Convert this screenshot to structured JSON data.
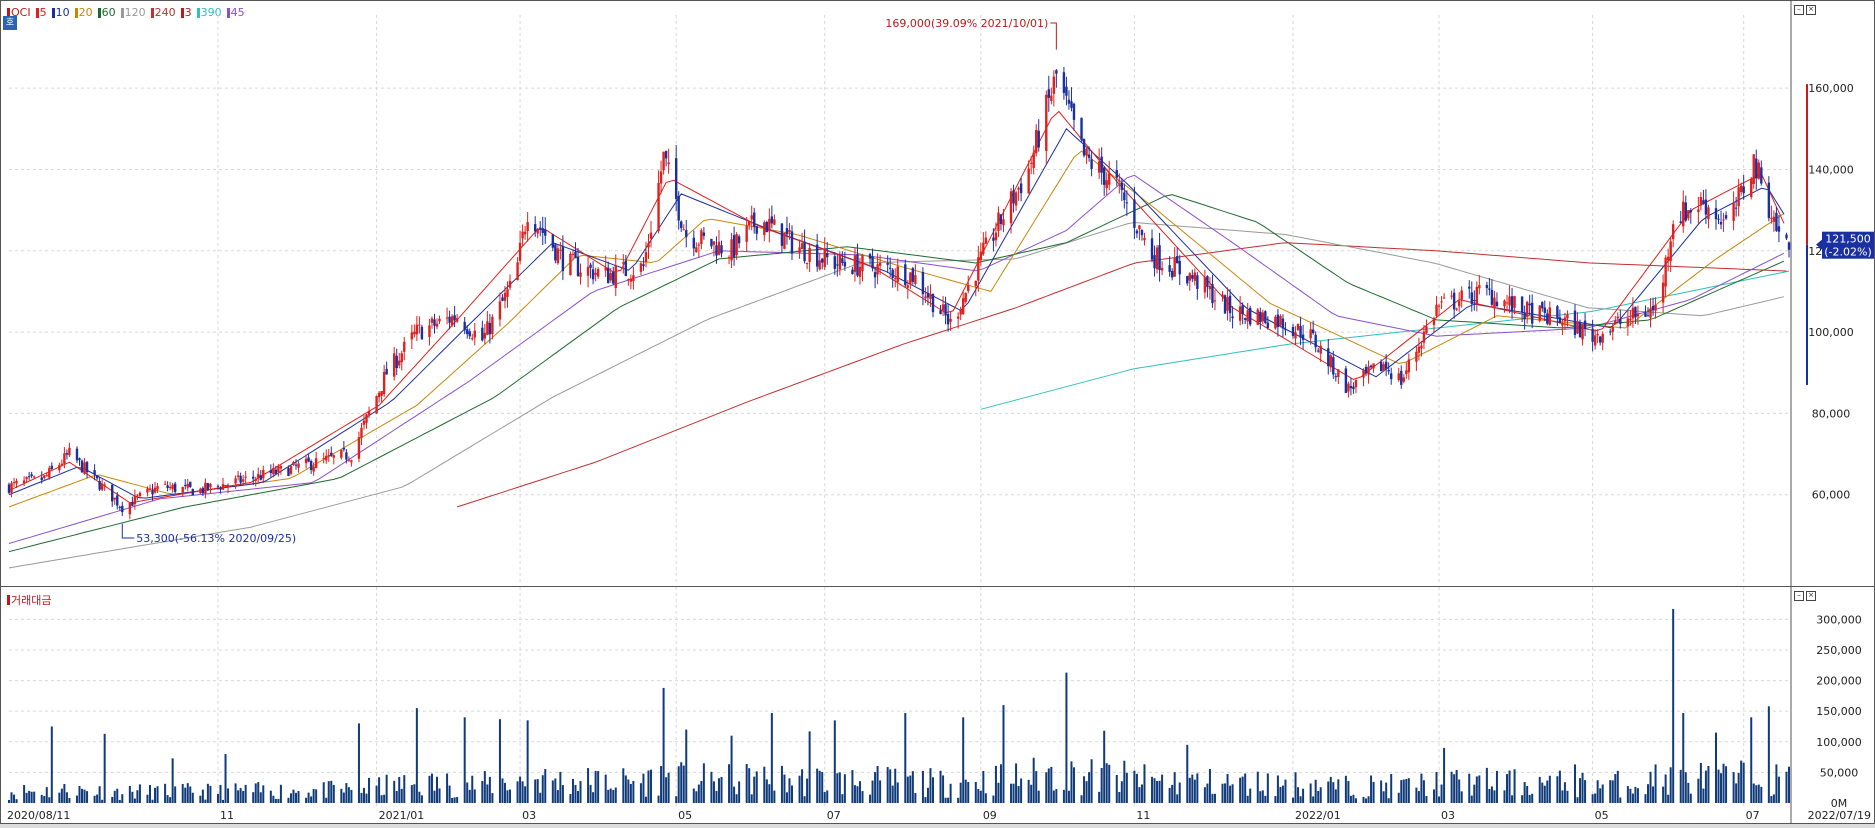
{
  "chart_data": [
    {
      "type": "candlestick",
      "symbol": "OCI",
      "legend": [
        {
          "label": "OCI",
          "color": "#c01818"
        },
        {
          "label": "5",
          "color": "#e0201c"
        },
        {
          "label": "10",
          "color": "#1a2fa0"
        },
        {
          "label": "20",
          "color": "#c8860a"
        },
        {
          "label": "60",
          "color": "#1e6b2e"
        },
        {
          "label": "120",
          "color": "#999999"
        },
        {
          "label": "240",
          "color": "#c03030"
        },
        {
          "label": "3",
          "color": "#c01818"
        },
        {
          "label": "390",
          "color": "#30c0c0"
        },
        {
          "label": "45",
          "color": "#8a4fd0"
        }
      ],
      "ylim": [
        40000,
        178000
      ],
      "yticks": [
        60000,
        80000,
        100000,
        120000,
        140000,
        160000
      ],
      "ytick_labels": [
        "60,000",
        "80,000",
        "100,000",
        "120,000",
        "140,000",
        "160,000"
      ],
      "x_range": [
        "2020-08-11",
        "2022-07-19"
      ],
      "x_ticks": [
        {
          "date": "2020-08-11",
          "label": "2020/08/11"
        },
        {
          "date": "2020-11-02",
          "label": "11"
        },
        {
          "date": "2021-01-04",
          "label": "2021/01"
        },
        {
          "date": "2021-03-02",
          "label": "03"
        },
        {
          "date": "2021-05-03",
          "label": "05"
        },
        {
          "date": "2021-07-01",
          "label": "07"
        },
        {
          "date": "2021-09-01",
          "label": "09"
        },
        {
          "date": "2021-11-01",
          "label": "11"
        },
        {
          "date": "2022-01-03",
          "label": "2022/01"
        },
        {
          "date": "2022-03-02",
          "label": "03"
        },
        {
          "date": "2022-05-02",
          "label": "05"
        },
        {
          "date": "2022-07-01",
          "label": "07"
        },
        {
          "date": "2022-07-19",
          "label": "2022/07/19"
        }
      ],
      "close_path": [
        [
          "2020-08-11",
          62000
        ],
        [
          "2020-08-25",
          64000
        ],
        [
          "2020-09-04",
          70000
        ],
        [
          "2020-09-25",
          57000
        ],
        [
          "2020-10-10",
          62000
        ],
        [
          "2020-10-25",
          61000
        ],
        [
          "2020-11-15",
          64000
        ],
        [
          "2020-12-05",
          67000
        ],
        [
          "2020-12-25",
          70000
        ],
        [
          "2021-01-08",
          90000
        ],
        [
          "2021-01-20",
          100000
        ],
        [
          "2021-02-05",
          104000
        ],
        [
          "2021-02-15",
          98000
        ],
        [
          "2021-02-28",
          113000
        ],
        [
          "2021-03-05",
          130000
        ],
        [
          "2021-03-20",
          117000
        ],
        [
          "2021-04-05",
          114000
        ],
        [
          "2021-04-20",
          116000
        ],
        [
          "2021-04-28",
          143000
        ],
        [
          "2021-05-07",
          124000
        ],
        [
          "2021-05-25",
          120000
        ],
        [
          "2021-06-05",
          128000
        ],
        [
          "2021-06-20",
          121000
        ],
        [
          "2021-07-05",
          117000
        ],
        [
          "2021-07-20",
          116000
        ],
        [
          "2021-08-05",
          114000
        ],
        [
          "2021-08-20",
          102000
        ],
        [
          "2021-09-05",
          123000
        ],
        [
          "2021-09-20",
          140000
        ],
        [
          "2021-10-01",
          163000
        ],
        [
          "2021-10-12",
          143000
        ],
        [
          "2021-10-25",
          136000
        ],
        [
          "2021-11-08",
          119000
        ],
        [
          "2021-11-25",
          113000
        ],
        [
          "2021-12-10",
          105000
        ],
        [
          "2021-12-28",
          103000
        ],
        [
          "2022-01-10",
          99000
        ],
        [
          "2022-01-25",
          86000
        ],
        [
          "2022-02-08",
          92000
        ],
        [
          "2022-02-15",
          88000
        ],
        [
          "2022-03-01",
          106000
        ],
        [
          "2022-03-20",
          110000
        ],
        [
          "2022-04-05",
          105000
        ],
        [
          "2022-04-20",
          103000
        ],
        [
          "2022-05-02",
          99000
        ],
        [
          "2022-05-15",
          103000
        ],
        [
          "2022-05-28",
          106000
        ],
        [
          "2022-06-03",
          128000
        ],
        [
          "2022-06-15",
          132000
        ],
        [
          "2022-06-25",
          126000
        ],
        [
          "2022-07-05",
          142000
        ],
        [
          "2022-07-15",
          124000
        ],
        [
          "2022-07-19",
          121500
        ]
      ],
      "ma_series": [
        {
          "name": "5",
          "color": "#e0201c",
          "points": [
            [
              "2020-08-11",
              61000
            ],
            [
              "2020-09-04",
              68000
            ],
            [
              "2020-09-28",
              58000
            ],
            [
              "2020-11-15",
              63000
            ],
            [
              "2021-01-05",
              82000
            ],
            [
              "2021-02-05",
              103000
            ],
            [
              "2021-03-10",
              126000
            ],
            [
              "2021-04-10",
              114000
            ],
            [
              "2021-04-30",
              138000
            ],
            [
              "2021-06-05",
              126000
            ],
            [
              "2021-07-20",
              116000
            ],
            [
              "2021-08-20",
              104000
            ],
            [
              "2021-10-01",
              155000
            ],
            [
              "2021-10-25",
              137000
            ],
            [
              "2021-12-10",
              106000
            ],
            [
              "2022-01-28",
              88000
            ],
            [
              "2022-03-10",
              108000
            ],
            [
              "2022-05-05",
              100000
            ],
            [
              "2022-06-10",
              130000
            ],
            [
              "2022-07-08",
              139000
            ],
            [
              "2022-07-19",
              124000
            ]
          ]
        },
        {
          "name": "10",
          "color": "#1a2fa0",
          "points": [
            [
              "2020-08-11",
              60000
            ],
            [
              "2020-09-08",
              67000
            ],
            [
              "2020-10-02",
              59000
            ],
            [
              "2020-11-20",
              63000
            ],
            [
              "2021-01-10",
              83000
            ],
            [
              "2021-02-10",
              102000
            ],
            [
              "2021-03-15",
              122000
            ],
            [
              "2021-04-15",
              115000
            ],
            [
              "2021-05-05",
              134000
            ],
            [
              "2021-06-10",
              125000
            ],
            [
              "2021-07-25",
              115000
            ],
            [
              "2021-08-25",
              105000
            ],
            [
              "2021-10-05",
              150000
            ],
            [
              "2021-10-30",
              136000
            ],
            [
              "2021-12-15",
              106000
            ],
            [
              "2022-02-05",
              89000
            ],
            [
              "2022-03-15",
              107000
            ],
            [
              "2022-05-10",
              101000
            ],
            [
              "2022-06-15",
              128000
            ],
            [
              "2022-07-10",
              136000
            ],
            [
              "2022-07-19",
              127000
            ]
          ]
        },
        {
          "name": "20",
          "color": "#c8860a",
          "points": [
            [
              "2020-08-11",
              57000
            ],
            [
              "2020-09-15",
              65000
            ],
            [
              "2020-10-15",
              60000
            ],
            [
              "2020-12-01",
              64000
            ],
            [
              "2021-01-20",
              82000
            ],
            [
              "2021-02-25",
              102000
            ],
            [
              "2021-03-25",
              119000
            ],
            [
              "2021-04-25",
              117000
            ],
            [
              "2021-05-15",
              128000
            ],
            [
              "2021-06-20",
              124000
            ],
            [
              "2021-08-01",
              116000
            ],
            [
              "2021-09-05",
              110000
            ],
            [
              "2021-10-10",
              145000
            ],
            [
              "2021-11-10",
              130000
            ],
            [
              "2021-12-25",
              107000
            ],
            [
              "2022-02-15",
              92000
            ],
            [
              "2022-03-25",
              104000
            ],
            [
              "2022-05-15",
              101000
            ],
            [
              "2022-06-20",
              118000
            ],
            [
              "2022-07-19",
              130000
            ]
          ]
        },
        {
          "name": "60",
          "color": "#1e6b2e",
          "points": [
            [
              "2020-08-11",
              46000
            ],
            [
              "2020-10-20",
              57000
            ],
            [
              "2020-12-20",
              64000
            ],
            [
              "2021-02-20",
              84000
            ],
            [
              "2021-04-10",
              106000
            ],
            [
              "2021-05-20",
              118000
            ],
            [
              "2021-07-10",
              121000
            ],
            [
              "2021-08-30",
              117000
            ],
            [
              "2021-10-05",
              122000
            ],
            [
              "2021-11-15",
              134000
            ],
            [
              "2021-12-20",
              127000
            ],
            [
              "2022-01-25",
              112000
            ],
            [
              "2022-03-01",
              103000
            ],
            [
              "2022-04-20",
              101000
            ],
            [
              "2022-05-25",
              103000
            ],
            [
              "2022-07-19",
              118000
            ]
          ]
        },
        {
          "name": "45",
          "color": "#8a4fd0",
          "points": [
            [
              "2020-08-11",
              48000
            ],
            [
              "2020-10-10",
              59000
            ],
            [
              "2020-12-10",
              63000
            ],
            [
              "2021-02-10",
              88000
            ],
            [
              "2021-03-31",
              110000
            ],
            [
              "2021-05-20",
              120000
            ],
            [
              "2021-07-15",
              119000
            ],
            [
              "2021-08-31",
              115000
            ],
            [
              "2021-10-05",
              125000
            ],
            [
              "2021-10-31",
              139000
            ],
            [
              "2021-12-10",
              122000
            ],
            [
              "2022-01-20",
              104000
            ],
            [
              "2022-03-01",
              99000
            ],
            [
              "2022-04-30",
              101000
            ],
            [
              "2022-06-10",
              108000
            ],
            [
              "2022-07-19",
              120000
            ]
          ]
        },
        {
          "name": "120",
          "color": "#999999",
          "points": [
            [
              "2020-08-11",
              42000
            ],
            [
              "2020-11-15",
              52000
            ],
            [
              "2021-01-15",
              62000
            ],
            [
              "2021-03-15",
              84000
            ],
            [
              "2021-05-15",
              103000
            ],
            [
              "2021-07-15",
              117000
            ],
            [
              "2021-09-15",
              118000
            ],
            [
              "2021-10-31",
              127000
            ],
            [
              "2021-12-31",
              124000
            ],
            [
              "2022-02-28",
              117000
            ],
            [
              "2022-04-30",
              106000
            ],
            [
              "2022-06-15",
              104000
            ],
            [
              "2022-07-19",
              109000
            ]
          ]
        },
        {
          "name": "240",
          "color": "#c03030",
          "points": [
            [
              "2021-02-05",
              57000
            ],
            [
              "2021-04-01",
              68000
            ],
            [
              "2021-06-01",
              83000
            ],
            [
              "2021-08-01",
              97000
            ],
            [
              "2021-09-15",
              106000
            ],
            [
              "2021-11-01",
              117000
            ],
            [
              "2021-12-31",
              122000
            ],
            [
              "2022-03-01",
              120000
            ],
            [
              "2022-05-01",
              117000
            ],
            [
              "2022-07-19",
              115000
            ]
          ]
        },
        {
          "name": "390",
          "color": "#30c0c0",
          "points": [
            [
              "2021-09-01",
              81000
            ],
            [
              "2021-11-01",
              91000
            ],
            [
              "2022-01-01",
              97000
            ],
            [
              "2022-03-01",
              101000
            ],
            [
              "2022-05-01",
              105000
            ],
            [
              "2022-07-19",
              115000
            ]
          ]
        }
      ],
      "annotations": [
        {
          "text": "169,000(39.09% 2021/10/01)",
          "date": "2021-10-01",
          "value": 169000,
          "color": "#c01818"
        },
        {
          "text": "53,300(-56.13% 2020/09/25)",
          "date": "2020-09-25",
          "value": 53300,
          "color": "#1a2fa0"
        }
      ],
      "current_price_label": "121,500",
      "current_change_label": "(-2.02%)",
      "current_price": 121500,
      "range_bar": {
        "high": 161000,
        "low": 87000,
        "split": 121500
      }
    },
    {
      "type": "bar",
      "legend_label": "거래대금",
      "ylim": [
        0,
        330000
      ],
      "yticks": [
        0,
        50000,
        100000,
        150000,
        200000,
        250000,
        300000
      ],
      "ytick_labels": [
        "0M",
        "50,000",
        "100,000",
        "150,000",
        "200,000",
        "250,000",
        "300,000"
      ],
      "spikes": [
        {
          "date": "2020-08-28",
          "value": 125000
        },
        {
          "date": "2020-09-18",
          "value": 113000
        },
        {
          "date": "2020-10-15",
          "value": 73000
        },
        {
          "date": "2020-11-05",
          "value": 80000
        },
        {
          "date": "2020-12-28",
          "value": 130000
        },
        {
          "date": "2021-01-20",
          "value": 155000
        },
        {
          "date": "2021-02-08",
          "value": 140000
        },
        {
          "date": "2021-02-22",
          "value": 137000
        },
        {
          "date": "2021-03-05",
          "value": 135000
        },
        {
          "date": "2021-04-10",
          "value": 118000
        },
        {
          "date": "2021-04-28",
          "value": 188000
        },
        {
          "date": "2021-05-07",
          "value": 120000
        },
        {
          "date": "2021-05-25",
          "value": 110000
        },
        {
          "date": "2021-06-10",
          "value": 147000
        },
        {
          "date": "2021-06-25",
          "value": 117000
        },
        {
          "date": "2021-07-05",
          "value": 135000
        },
        {
          "date": "2021-08-02",
          "value": 147000
        },
        {
          "date": "2021-08-25",
          "value": 140000
        },
        {
          "date": "2021-09-10",
          "value": 160000
        },
        {
          "date": "2021-09-25",
          "value": 190000
        },
        {
          "date": "2021-10-05",
          "value": 213000
        },
        {
          "date": "2021-10-20",
          "value": 118000
        },
        {
          "date": "2021-11-22",
          "value": 95000
        },
        {
          "date": "2022-02-20",
          "value": 60000
        },
        {
          "date": "2022-03-04",
          "value": 90000
        },
        {
          "date": "2022-04-25",
          "value": 63000
        },
        {
          "date": "2022-05-27",
          "value": 63000
        },
        {
          "date": "2022-06-03",
          "value": 317000
        },
        {
          "date": "2022-06-07",
          "value": 147000
        },
        {
          "date": "2022-06-20",
          "value": 115000
        },
        {
          "date": "2022-07-04",
          "value": 140000
        },
        {
          "date": "2022-07-11",
          "value": 158000
        }
      ],
      "color": "#103a7a"
    }
  ]
}
